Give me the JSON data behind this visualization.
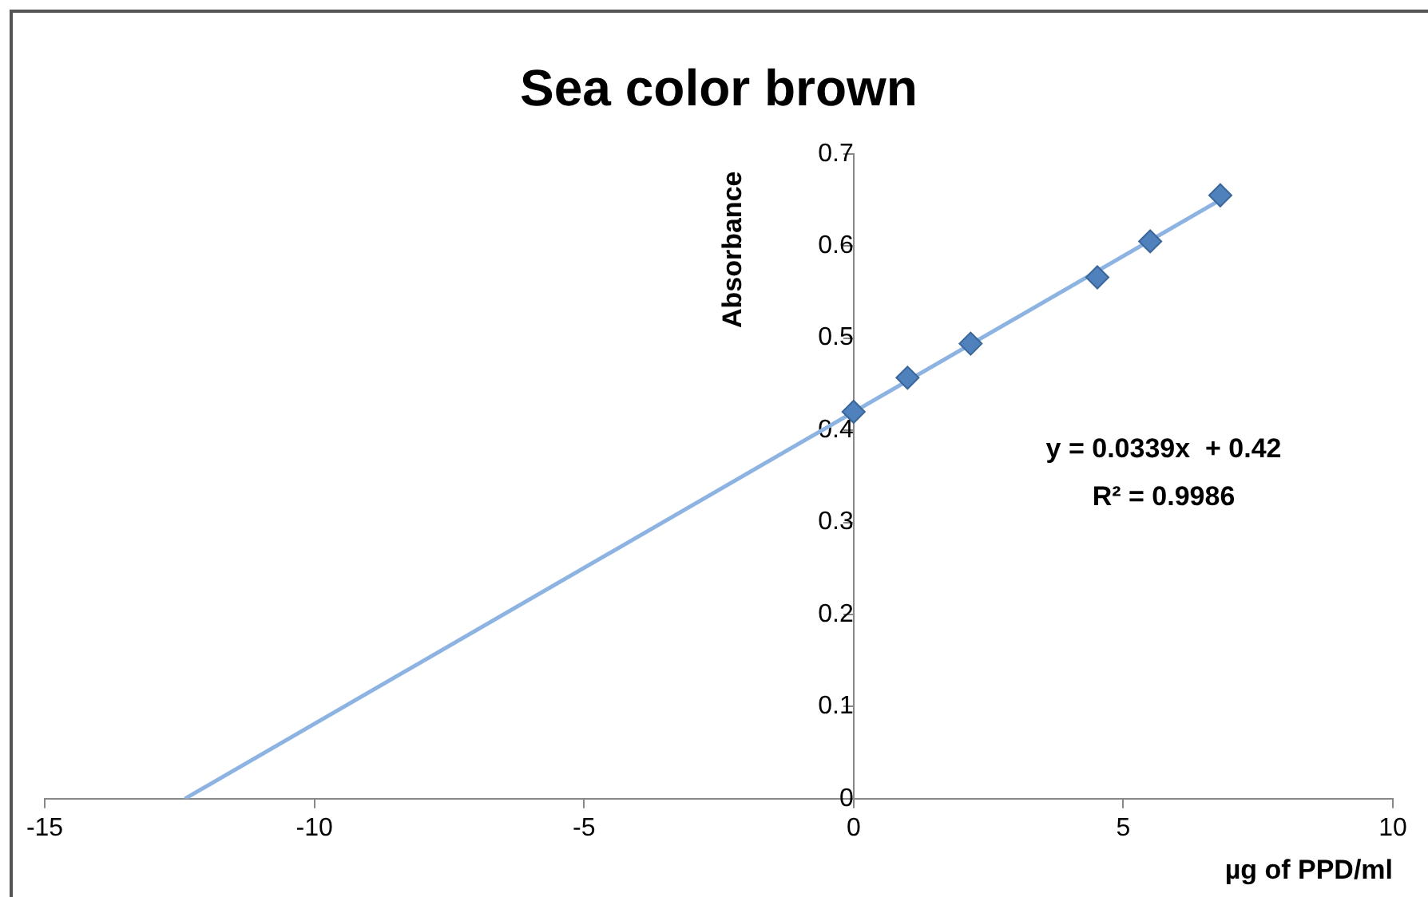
{
  "chart_data": {
    "type": "scatter",
    "title": "Sea color brown",
    "xlabel": "µg of PPD/ml",
    "ylabel": "Absorbance",
    "series": [
      {
        "marker": "diamond",
        "color": "#4f81bd",
        "x": [
          0,
          1,
          2.17,
          4.52,
          5.5,
          6.8
        ],
        "values": [
          0.42,
          0.457,
          0.494,
          0.566,
          0.605,
          0.655
        ]
      },
      {
        "type": "line",
        "color": "#8db3e2",
        "x": [
          -12.4,
          6.8
        ],
        "values": [
          0,
          0.65
        ]
      }
    ],
    "xlim": [
      -15,
      10
    ],
    "xticks": [
      -15,
      -10,
      -5,
      0,
      5,
      10
    ],
    "ylim": [
      0,
      0.7
    ],
    "yticks": [
      0,
      0.1,
      0.2,
      0.3,
      0.4,
      0.5,
      0.6,
      0.7
    ],
    "annotations": [
      "y = 0.0339x  + 0.42",
      "R² = 0.9986"
    ],
    "grid": false,
    "legend": false,
    "line_style": "solid"
  }
}
